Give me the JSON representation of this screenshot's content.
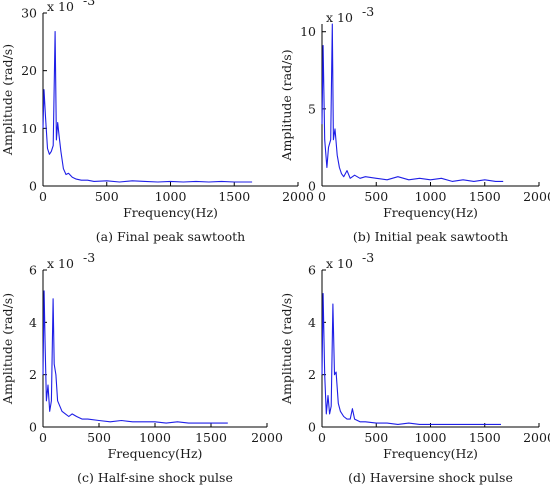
{
  "chart_data": [
    {
      "type": "line",
      "panel": "a",
      "caption": "(a)  Final peak sawtooth",
      "xlabel": "Frequency(Hz)",
      "ylabel": "Amplitude  (rad/s)",
      "exponent_label": "x 10",
      "exponent_power": "-3",
      "xlim": [
        0,
        2000
      ],
      "ylim": [
        0,
        30
      ],
      "xticks": [
        0,
        500,
        1000,
        1500,
        2000
      ],
      "yticks": [
        0,
        10,
        20,
        30
      ],
      "xtick_labels": [
        "0",
        "500",
        "1000",
        "1500",
        "2000"
      ],
      "ytick_labels": [
        "0",
        "10",
        "20",
        "30"
      ],
      "grid": false,
      "series": [
        {
          "color": "#1f1fe6",
          "x": [
            0,
            8,
            20,
            35,
            50,
            65,
            80,
            95,
            105,
            115,
            125,
            140,
            160,
            180,
            200,
            230,
            260,
            300,
            350,
            400,
            500,
            600,
            700,
            800,
            900,
            1000,
            1100,
            1200,
            1300,
            1400,
            1500,
            1640
          ],
          "y": [
            10,
            16.7,
            12,
            6.5,
            5.5,
            6,
            7,
            26.8,
            8,
            11,
            9,
            6,
            3,
            2,
            2.2,
            1.5,
            1.2,
            1.0,
            1.0,
            0.8,
            0.9,
            0.7,
            0.9,
            0.8,
            0.7,
            0.8,
            0.7,
            0.8,
            0.7,
            0.8,
            0.7,
            0.7
          ]
        }
      ]
    },
    {
      "type": "line",
      "panel": "b",
      "caption": "(b)  Initial peak sawtooth",
      "xlabel": "Frequency(Hz)",
      "ylabel": "Amplitude  (rad/s)",
      "exponent_label": "x 10",
      "exponent_power": "-3",
      "xlim": [
        0,
        2000
      ],
      "ylim": [
        0,
        10.5
      ],
      "xticks": [
        0,
        500,
        1000,
        1500,
        2000
      ],
      "yticks": [
        0,
        5,
        10
      ],
      "xtick_labels": [
        "0",
        "500",
        "1000",
        "1500",
        "2000"
      ],
      "ytick_labels": [
        "0",
        "5",
        "10"
      ],
      "grid": false,
      "series": [
        {
          "color": "#1f1fe6",
          "x": [
            0,
            10,
            25,
            45,
            60,
            80,
            95,
            105,
            120,
            140,
            160,
            180,
            200,
            230,
            260,
            300,
            350,
            400,
            500,
            600,
            700,
            800,
            900,
            1000,
            1100,
            1200,
            1300,
            1400,
            1500,
            1600,
            1670
          ],
          "y": [
            4,
            9.1,
            3,
            1.2,
            2.5,
            3,
            10.5,
            3,
            3.7,
            2,
            1.2,
            0.8,
            0.6,
            1.0,
            0.5,
            0.7,
            0.5,
            0.6,
            0.5,
            0.4,
            0.6,
            0.4,
            0.5,
            0.4,
            0.5,
            0.3,
            0.4,
            0.3,
            0.4,
            0.3,
            0.3
          ]
        }
      ]
    },
    {
      "type": "line",
      "panel": "c",
      "caption": "(c)  Half-sine shock pulse",
      "xlabel": "Frequency(Hz)",
      "ylabel": "Amplitude  (rad/s)",
      "exponent_label": "x 10",
      "exponent_power": "-3",
      "xlim": [
        0,
        2000
      ],
      "ylim": [
        0,
        6
      ],
      "xticks": [
        0,
        500,
        1000,
        1500,
        2000
      ],
      "yticks": [
        0,
        2,
        4,
        6
      ],
      "xtick_labels": [
        "0",
        "500",
        "1000",
        "1500",
        "2000"
      ],
      "ytick_labels": [
        "0",
        "2",
        "4",
        "6"
      ],
      "grid": false,
      "series": [
        {
          "color": "#1f1fe6",
          "x": [
            0,
            10,
            20,
            30,
            45,
            60,
            75,
            90,
            100,
            115,
            130,
            150,
            170,
            200,
            230,
            260,
            300,
            350,
            400,
            500,
            600,
            700,
            800,
            900,
            1000,
            1100,
            1200,
            1300,
            1400,
            1500,
            1650
          ],
          "y": [
            2,
            5.2,
            3,
            1.0,
            1.6,
            0.6,
            1.0,
            4.9,
            2.4,
            2.0,
            1.0,
            0.8,
            0.6,
            0.5,
            0.4,
            0.5,
            0.4,
            0.3,
            0.3,
            0.25,
            0.2,
            0.25,
            0.2,
            0.2,
            0.2,
            0.15,
            0.2,
            0.15,
            0.15,
            0.15,
            0.15
          ]
        }
      ]
    },
    {
      "type": "line",
      "panel": "d",
      "caption": "(d)  Haversine shock pulse",
      "xlabel": "Frequency(Hz)",
      "ylabel": "Amplitude  (rad/s)",
      "exponent_label": "x 10",
      "exponent_power": "-3",
      "xlim": [
        0,
        2000
      ],
      "ylim": [
        0,
        6
      ],
      "xticks": [
        0,
        500,
        1000,
        1500,
        2000
      ],
      "yticks": [
        0,
        2,
        4,
        6
      ],
      "xtick_labels": [
        "0",
        "500",
        "1000",
        "1500",
        "2000"
      ],
      "ytick_labels": [
        "0",
        "2",
        "4",
        "6"
      ],
      "grid": false,
      "series": [
        {
          "color": "#1f1fe6",
          "x": [
            0,
            10,
            25,
            40,
            55,
            70,
            85,
            100,
            115,
            130,
            150,
            170,
            200,
            230,
            260,
            280,
            300,
            350,
            400,
            500,
            600,
            700,
            800,
            900,
            1000,
            1100,
            1200,
            1300,
            1400,
            1500,
            1650
          ],
          "y": [
            2,
            5.1,
            2,
            0.5,
            1.2,
            0.5,
            0.8,
            4.7,
            2.0,
            2.1,
            0.9,
            0.6,
            0.4,
            0.3,
            0.3,
            0.7,
            0.3,
            0.2,
            0.2,
            0.15,
            0.15,
            0.1,
            0.15,
            0.1,
            0.1,
            0.1,
            0.1,
            0.1,
            0.1,
            0.1,
            0.1
          ]
        }
      ]
    }
  ]
}
